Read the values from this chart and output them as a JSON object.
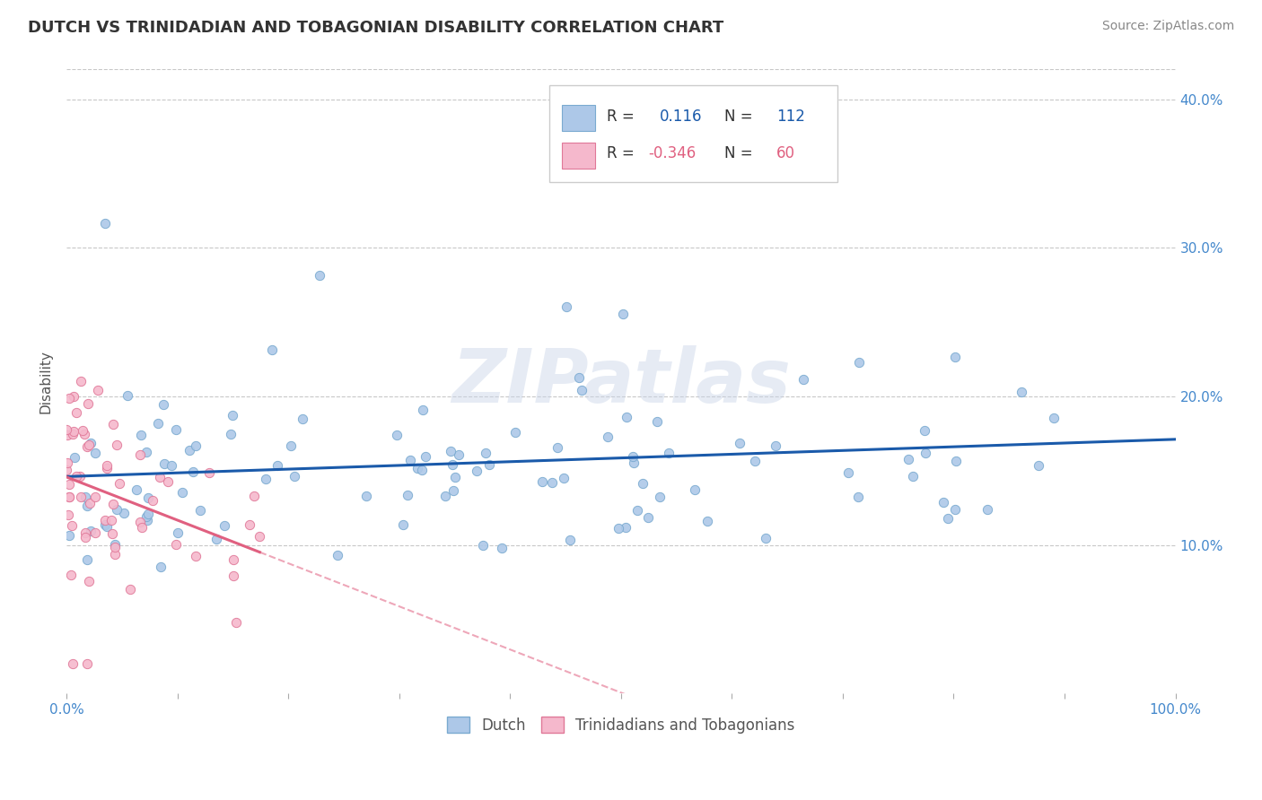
{
  "title": "DUTCH VS TRINIDADIAN AND TOBAGONIAN DISABILITY CORRELATION CHART",
  "source_text": "Source: ZipAtlas.com",
  "ylabel": "Disability",
  "watermark": "ZIPatlas",
  "xlim": [
    0,
    1.0
  ],
  "ylim": [
    0,
    0.42
  ],
  "xticklabels_ends": [
    "0.0%",
    "100.0%"
  ],
  "yticks_right": [
    0.1,
    0.2,
    0.3,
    0.4
  ],
  "yticklabels_right": [
    "10.0%",
    "20.0%",
    "30.0%",
    "40.0%"
  ],
  "dutch_color": "#adc8e8",
  "dutch_edge_color": "#7aaad0",
  "trinidadian_color": "#f5b8cc",
  "trinidadian_edge_color": "#e07898",
  "trend_dutch_color": "#1a5aaa",
  "trend_trinidadian_color": "#e06080",
  "legend_dutch_color": "#adc8e8",
  "legend_dutch_edge": "#7aaad0",
  "legend_trinidadian_color": "#f5b8cc",
  "legend_trinidadian_edge": "#e07898",
  "bottom_legend_dutch": "Dutch",
  "bottom_legend_trinidadian": "Trinidadians and Tobagonians",
  "background_color": "#ffffff",
  "grid_color": "#c8c8c8",
  "R_dutch": 0.116,
  "N_dutch": 112,
  "R_trinidadian": -0.346,
  "N_trinidadian": 60,
  "dutch_seed": 42,
  "trinidadian_seed": 99
}
